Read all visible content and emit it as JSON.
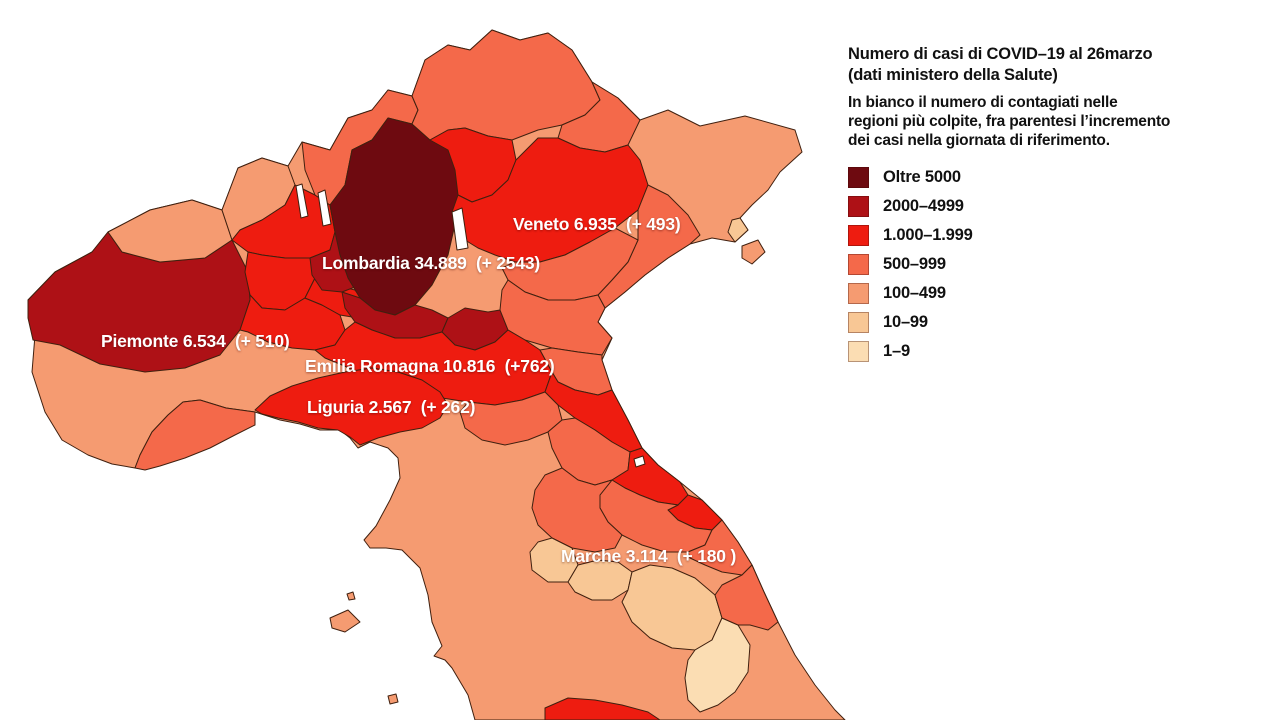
{
  "header": {
    "title_lines": [
      "Numero di casi di COVID–19 al 26marzo",
      "(dati ministero della Salute)"
    ],
    "subtitle_lines": [
      "In bianco il numero di contagiati nelle",
      "regioni più colpite, fra parentesi l’incremento",
      "dei casi nella giornata di riferimento."
    ]
  },
  "legend": {
    "items": [
      {
        "label": "Oltre 5000",
        "color": "#6e0a10"
      },
      {
        "label": "2000–4999",
        "color": "#ae1116"
      },
      {
        "label": "1.000–1.999",
        "color": "#ee1c10"
      },
      {
        "label": "500–999",
        "color": "#f4694a"
      },
      {
        "label": "100–499",
        "color": "#f59b71"
      },
      {
        "label": "10–99",
        "color": "#f8c795"
      },
      {
        "label": "1–9",
        "color": "#fbddb3"
      }
    ]
  },
  "map_labels": [
    {
      "region": "Veneto",
      "text": "Veneto 6.935  (+ 493)"
    },
    {
      "region": "Lombardia",
      "text": "Lombardia 34.889  (+ 2543)"
    },
    {
      "region": "Piemonte",
      "text": "Piemonte 6.534  (+ 510)"
    },
    {
      "region": "Emilia Romagna",
      "text": "Emilia Romagna 10.816  (+762)"
    },
    {
      "region": "Liguria",
      "text": "Liguria 2.567  (+ 262)"
    },
    {
      "region": "Marche",
      "text": "Marche 3.114  (+ 180 )"
    }
  ],
  "colors": {
    "sea": "#ffffff",
    "border": "#40200f",
    "text": "#111111",
    "map_label_text": "#ffffff"
  }
}
